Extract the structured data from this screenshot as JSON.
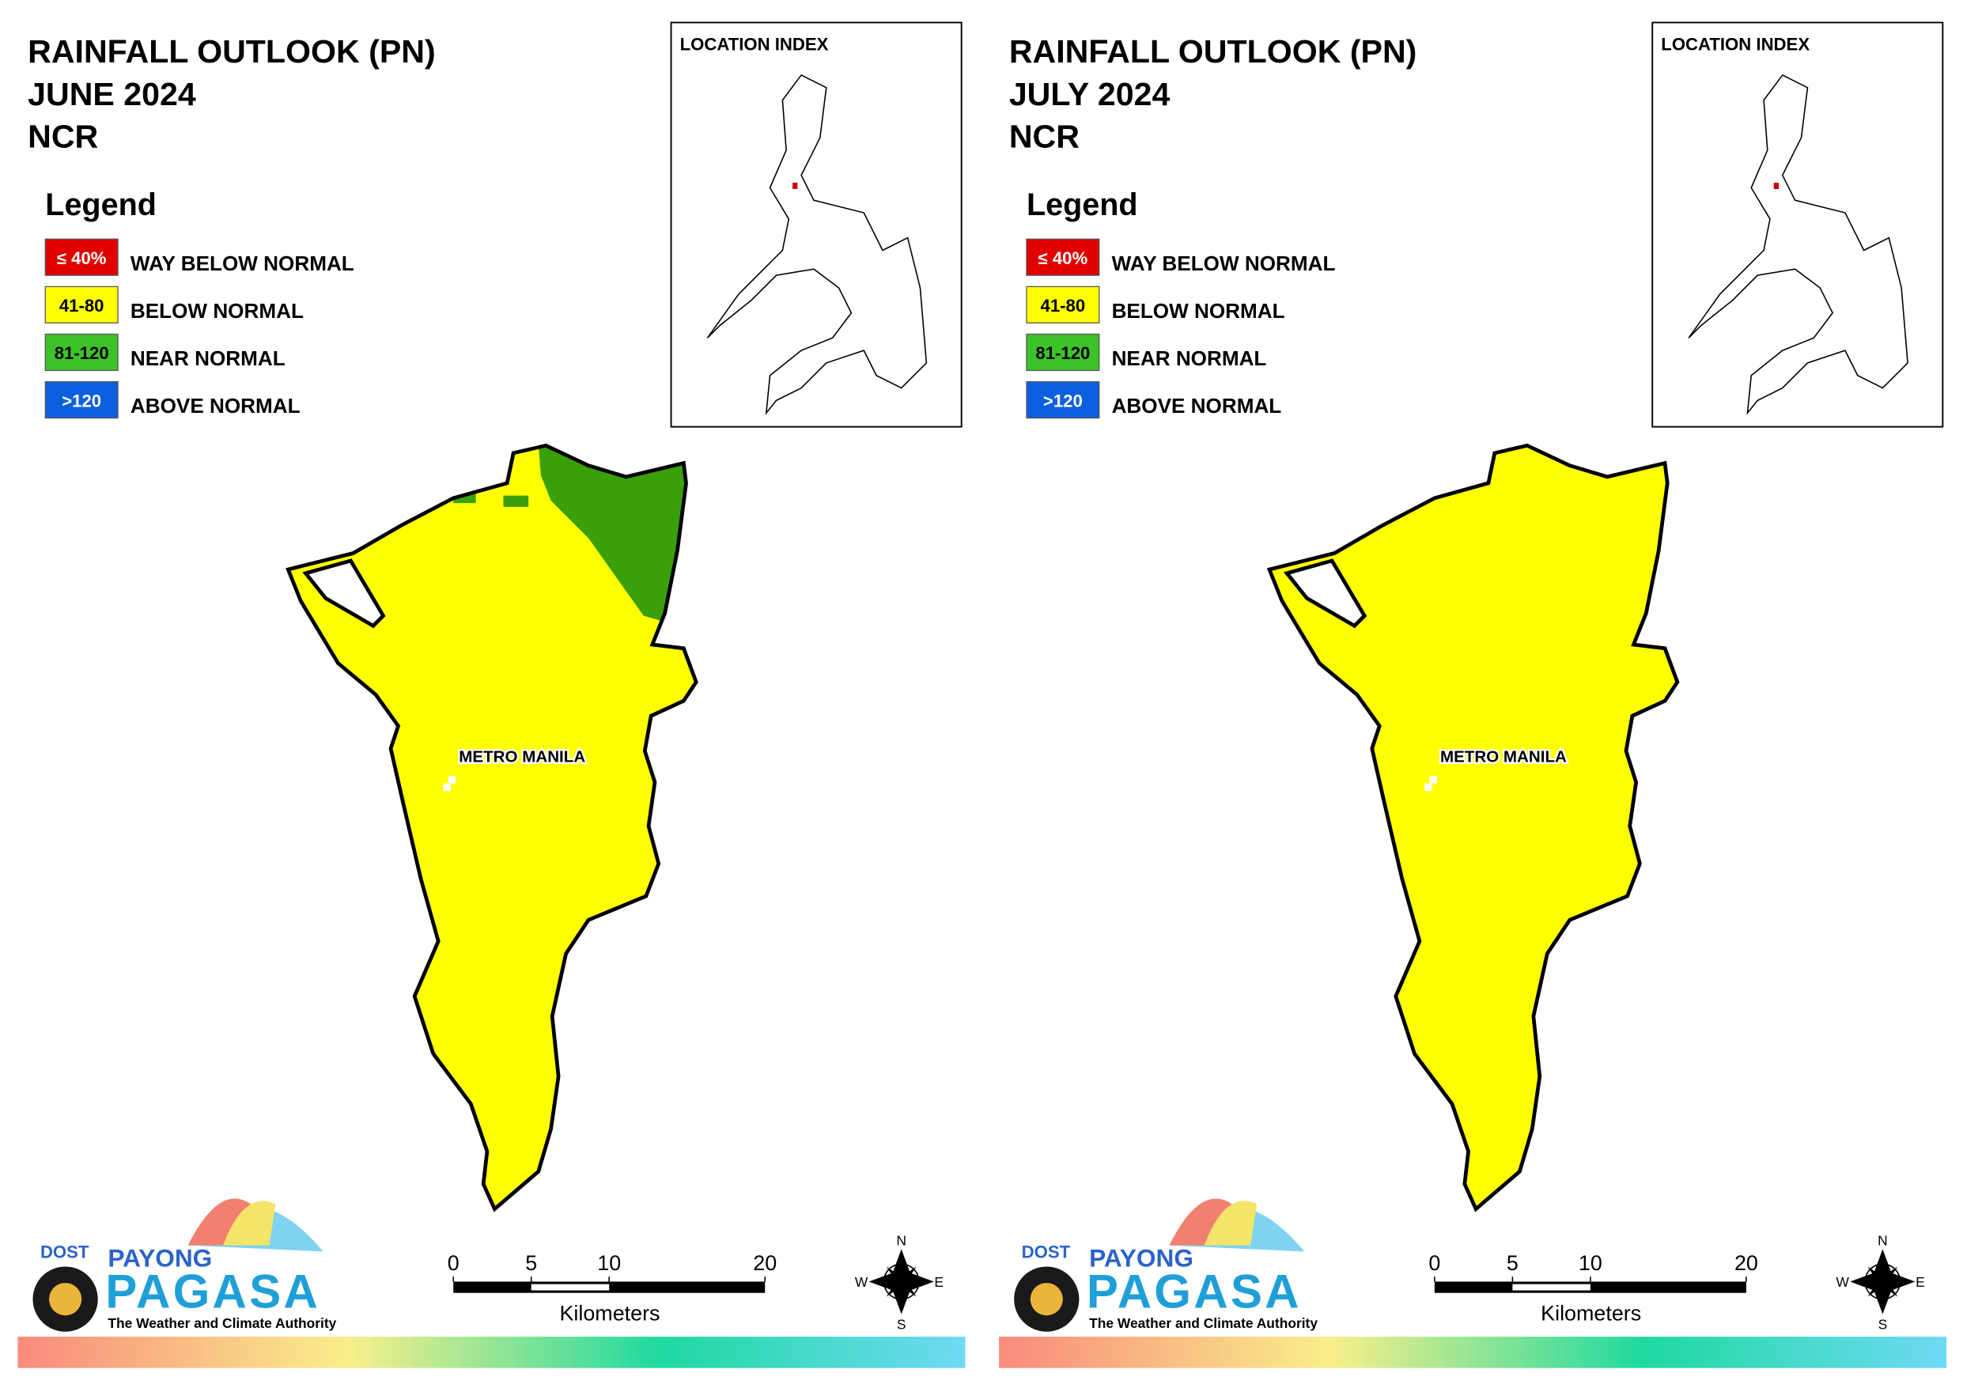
{
  "panels": [
    {
      "title": [
        "RAINFALL OUTLOOK (PN)",
        "JUNE 2024",
        "NCR"
      ],
      "location_index": "LOCATION INDEX",
      "legend": {
        "title": "Legend",
        "items": [
          {
            "swatch": "≤ 40%",
            "label": "WAY BELOW NORMAL"
          },
          {
            "swatch": "41-80",
            "label": "BELOW NORMAL"
          },
          {
            "swatch": "81-120",
            "label": "NEAR NORMAL"
          },
          {
            "swatch": ">120",
            "label": "ABOVE NORMAL"
          }
        ]
      },
      "map_label": "METRO MANILA",
      "scale": {
        "ticks": [
          0,
          5,
          10,
          20
        ],
        "unit": "Kilometers"
      },
      "compass": [
        "N",
        "E",
        "S",
        "W"
      ],
      "logo": {
        "dost": "DOST",
        "payong": "PAYONG",
        "pagasa": "PAGASA",
        "tagline": "The Weather and Climate Authority"
      }
    },
    {
      "title": [
        "RAINFALL OUTLOOK (PN)",
        "JULY 2024",
        "NCR"
      ],
      "location_index": "LOCATION INDEX",
      "legend": {
        "title": "Legend",
        "items": [
          {
            "swatch": "≤ 40%",
            "label": "WAY BELOW NORMAL"
          },
          {
            "swatch": "41-80",
            "label": "BELOW NORMAL"
          },
          {
            "swatch": "81-120",
            "label": "NEAR NORMAL"
          },
          {
            "swatch": ">120",
            "label": "ABOVE NORMAL"
          }
        ]
      },
      "map_label": "METRO MANILA",
      "scale": {
        "ticks": [
          0,
          5,
          10,
          20
        ],
        "unit": "Kilometers"
      },
      "compass": [
        "N",
        "E",
        "S",
        "W"
      ],
      "logo": {
        "dost": "DOST",
        "payong": "PAYONG",
        "pagasa": "PAGASA",
        "tagline": "The Weather and Climate Authority"
      }
    }
  ]
}
